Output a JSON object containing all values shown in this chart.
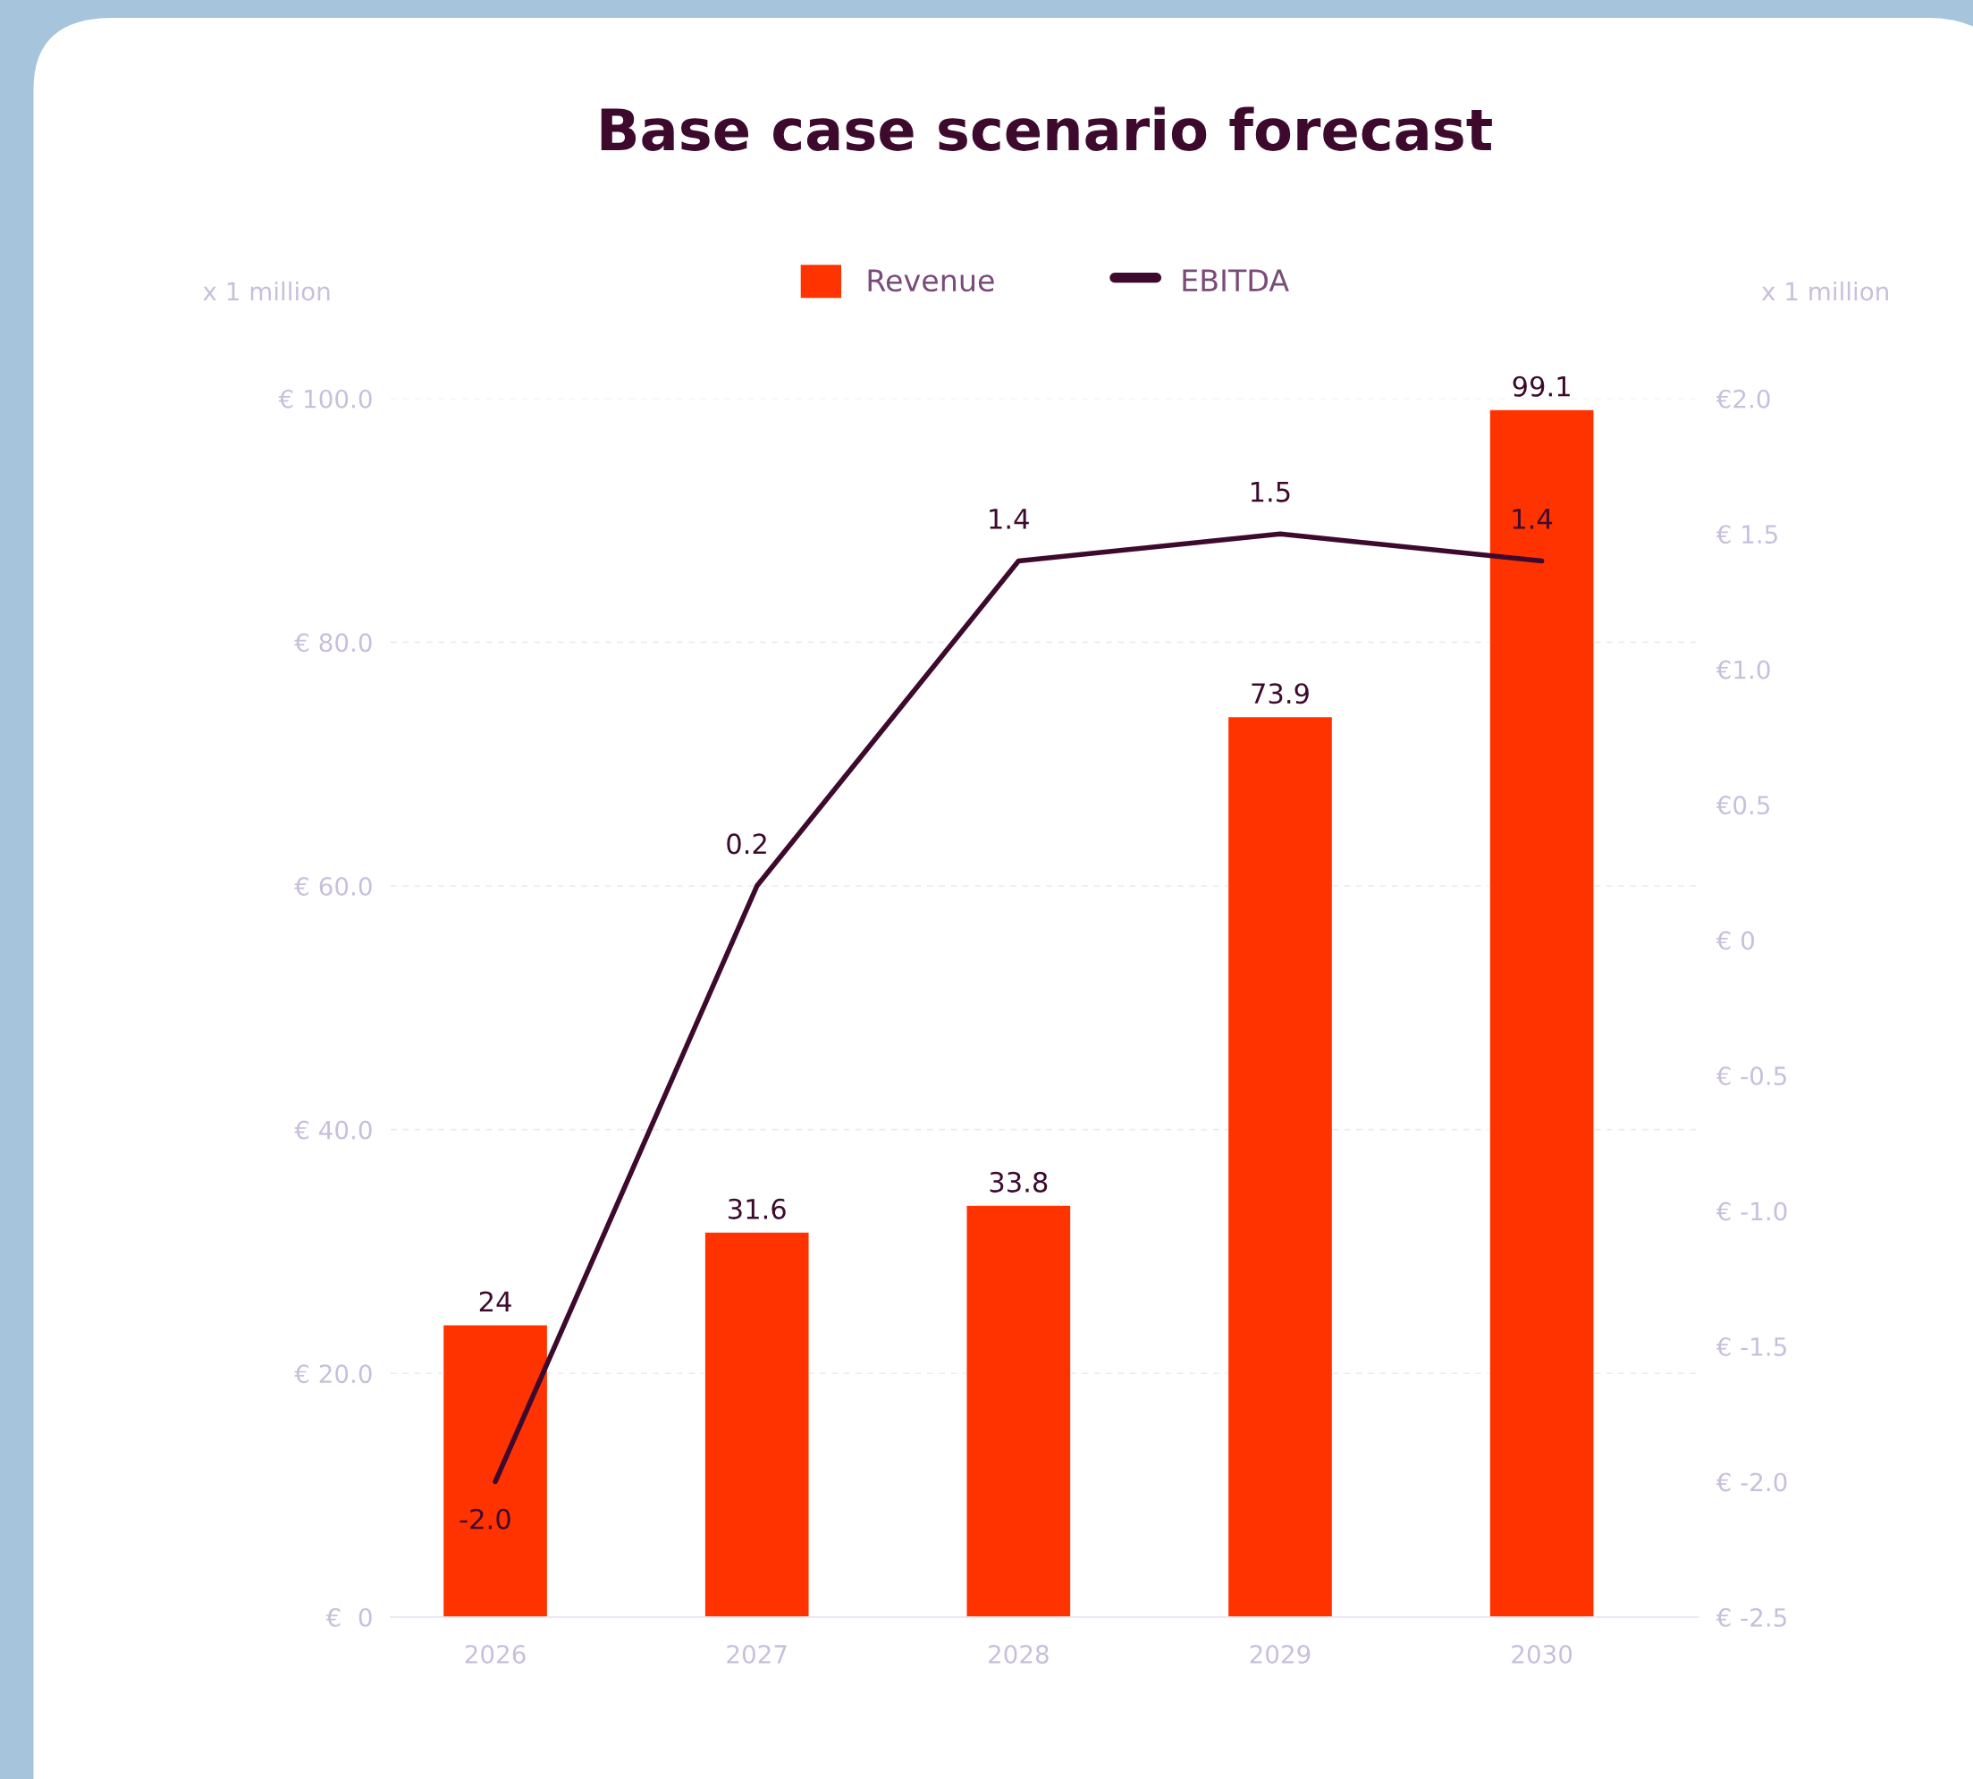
{
  "chart_data": {
    "type": "bar",
    "title": "Base case scenario forecast",
    "categories": [
      "2026",
      "2027",
      "2028",
      "2029",
      "2030"
    ],
    "series": [
      {
        "name": "Revenue",
        "color": "#ff3300",
        "values": [
          24,
          31.6,
          33.8,
          73.9,
          99.1
        ]
      },
      {
        "name": "EBITDA",
        "type": "line",
        "axis": "y2",
        "color": "#3d0a2e",
        "values": [
          -2.0,
          0.2,
          1.4,
          1.5,
          1.4
        ],
        "value_labels": [
          "-2.0",
          "0.2",
          "1.4",
          "1.5",
          "1.4"
        ]
      }
    ],
    "ylabel": "x 1 million",
    "y2label": "x 1 million",
    "ylim": [
      0,
      100
    ],
    "yticks": [
      {
        "value": 0,
        "label": "€  0"
      },
      {
        "value": 20,
        "label": "€ 20.0"
      },
      {
        "value": 40,
        "label": "€ 40.0"
      },
      {
        "value": 60,
        "label": "€ 60.0"
      },
      {
        "value": 80,
        "label": "€ 80.0"
      },
      {
        "value": 100,
        "label": "€ 100.0"
      }
    ],
    "y2lim": [
      -2.5,
      2.0
    ],
    "y2ticks": [
      {
        "value": -2.5,
        "label": "€ -2.5"
      },
      {
        "value": -2.0,
        "label": "€ -2.0"
      },
      {
        "value": -1.5,
        "label": "€ -1.5"
      },
      {
        "value": -1.0,
        "label": "€ -1.0"
      },
      {
        "value": -0.5,
        "label": "€ -0.5"
      },
      {
        "value": 0,
        "label": "€ 0"
      },
      {
        "value": 0.5,
        "label": "€0.5"
      },
      {
        "value": 1.0,
        "label": "€1.0"
      },
      {
        "value": 1.5,
        "label": "€ 1.5"
      },
      {
        "value": 2.0,
        "label": "€2.0"
      }
    ],
    "data_labels": true,
    "grid": "y",
    "legend": "top",
    "marker": "none",
    "line_style": "solid"
  }
}
